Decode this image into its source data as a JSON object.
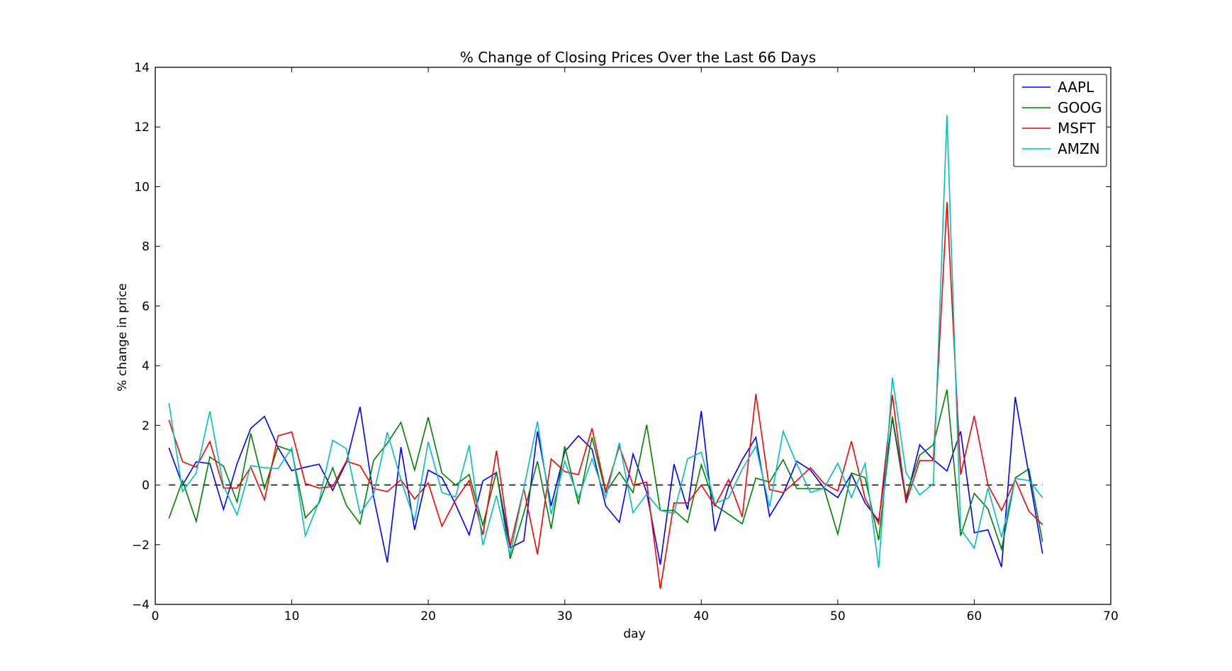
{
  "chart_data": {
    "type": "line",
    "title": "% Change of Closing Prices Over the Last 66 Days",
    "xlabel": "day",
    "ylabel": "% change in price",
    "xlim": [
      0,
      70
    ],
    "ylim": [
      -4,
      14
    ],
    "xticks": [
      0,
      10,
      20,
      30,
      40,
      50,
      60,
      70
    ],
    "yticks": [
      -4,
      -2,
      0,
      2,
      4,
      6,
      8,
      10,
      12,
      14
    ],
    "ytick_labels": [
      "−4",
      "−2",
      "0",
      "2",
      "4",
      "6",
      "8",
      "10",
      "12",
      "14"
    ],
    "grid": false,
    "legend_position": "top-right",
    "reference_line": {
      "y": 0,
      "style": "dashed",
      "color": "#000000"
    },
    "x": [
      1,
      2,
      3,
      4,
      5,
      6,
      7,
      8,
      9,
      10,
      11,
      12,
      13,
      14,
      15,
      16,
      17,
      18,
      19,
      20,
      21,
      22,
      23,
      24,
      25,
      26,
      27,
      28,
      29,
      30,
      31,
      32,
      33,
      34,
      35,
      36,
      37,
      38,
      39,
      40,
      41,
      42,
      43,
      44,
      45,
      46,
      47,
      48,
      49,
      50,
      51,
      52,
      53,
      54,
      55,
      56,
      57,
      58,
      59,
      60,
      61,
      62,
      63,
      64,
      65
    ],
    "series": [
      {
        "name": "AAPL",
        "color": "#0000ff",
        "values": [
          1.25,
          0.0,
          0.78,
          0.72,
          -0.82,
          0.72,
          1.9,
          2.3,
          1.25,
          0.48,
          0.6,
          0.7,
          -0.18,
          0.76,
          2.62,
          -0.4,
          -2.6,
          1.27,
          -1.5,
          0.5,
          0.25,
          -0.65,
          -1.67,
          0.14,
          0.42,
          -2.1,
          -1.87,
          1.8,
          -0.7,
          1.12,
          1.65,
          1.2,
          -0.7,
          -1.25,
          1.04,
          -0.25,
          -2.67,
          0.7,
          -0.82,
          2.48,
          -1.55,
          -0.05,
          0.85,
          1.6,
          -1.05,
          -0.3,
          0.8,
          0.5,
          -0.1,
          -0.42,
          0.37,
          -0.6,
          -1.2,
          2.25,
          -0.52,
          1.35,
          0.85,
          0.47,
          1.8,
          -1.6,
          -1.5,
          -2.75,
          2.95,
          0.35,
          -2.3
        ]
      },
      {
        "name": "GOOG",
        "color": "#008000",
        "values": [
          -1.12,
          0.15,
          -1.22,
          0.94,
          0.63,
          -0.57,
          1.73,
          -0.12,
          1.3,
          1.15,
          -1.1,
          -0.6,
          0.58,
          -0.68,
          -1.3,
          0.83,
          1.4,
          2.1,
          0.5,
          2.27,
          0.4,
          0.0,
          0.35,
          -1.35,
          0.45,
          -2.47,
          -0.95,
          0.8,
          -1.47,
          1.3,
          -0.64,
          1.6,
          -0.25,
          0.43,
          -0.25,
          2.02,
          -0.85,
          -0.85,
          -1.25,
          0.68,
          -0.67,
          -0.98,
          -1.3,
          0.23,
          0.1,
          0.85,
          -0.12,
          -0.12,
          -0.12,
          -1.65,
          0.4,
          0.25,
          -1.85,
          2.3,
          -0.4,
          1.0,
          1.35,
          3.2,
          -1.7,
          -0.28,
          -0.8,
          -2.15,
          0.24,
          0.54,
          -1.9
        ]
      },
      {
        "name": "MSFT",
        "color": "#ff0000",
        "values": [
          2.18,
          0.78,
          0.6,
          1.46,
          -0.1,
          -0.1,
          0.6,
          -0.5,
          1.65,
          1.78,
          0.05,
          -0.1,
          -0.05,
          0.8,
          0.65,
          -0.12,
          -0.22,
          0.18,
          -0.47,
          0.07,
          -1.38,
          -0.5,
          0.15,
          -1.67,
          1.15,
          -2.05,
          -0.12,
          -2.32,
          0.87,
          0.45,
          0.35,
          1.9,
          -0.2,
          1.3,
          0.0,
          0.1,
          -3.48,
          -0.6,
          -0.6,
          0.0,
          -0.7,
          0.18,
          -1.07,
          3.05,
          -0.15,
          -0.25,
          0.15,
          0.58,
          0.05,
          -0.2,
          1.47,
          -0.45,
          -1.3,
          3.02,
          -0.6,
          0.82,
          0.82,
          9.48,
          0.35,
          2.32,
          0.0,
          -0.85,
          0.18,
          -0.88,
          -1.33
        ]
      },
      {
        "name": "AMZN",
        "color": "#00bfbf",
        "values": [
          2.75,
          -0.22,
          0.4,
          2.47,
          -0.03,
          -1.0,
          0.65,
          0.58,
          0.55,
          1.24,
          -1.7,
          -0.55,
          1.5,
          1.22,
          -0.95,
          -0.3,
          1.77,
          0.18,
          -1.2,
          1.45,
          -0.25,
          -0.4,
          1.33,
          -2.02,
          -0.35,
          -2.35,
          -0.12,
          2.13,
          -0.98,
          0.8,
          -0.43,
          0.88,
          -0.42,
          1.42,
          -0.93,
          -0.3,
          -0.85,
          -0.95,
          0.88,
          1.1,
          -0.62,
          -0.43,
          0.53,
          1.3,
          -0.73,
          1.8,
          0.7,
          -0.25,
          -0.1,
          0.73,
          -0.42,
          0.72,
          -2.78,
          3.6,
          0.42,
          -0.33,
          0.05,
          12.4,
          -1.48,
          -2.12,
          -0.1,
          -1.75,
          0.22,
          0.15,
          -0.42
        ]
      }
    ]
  }
}
